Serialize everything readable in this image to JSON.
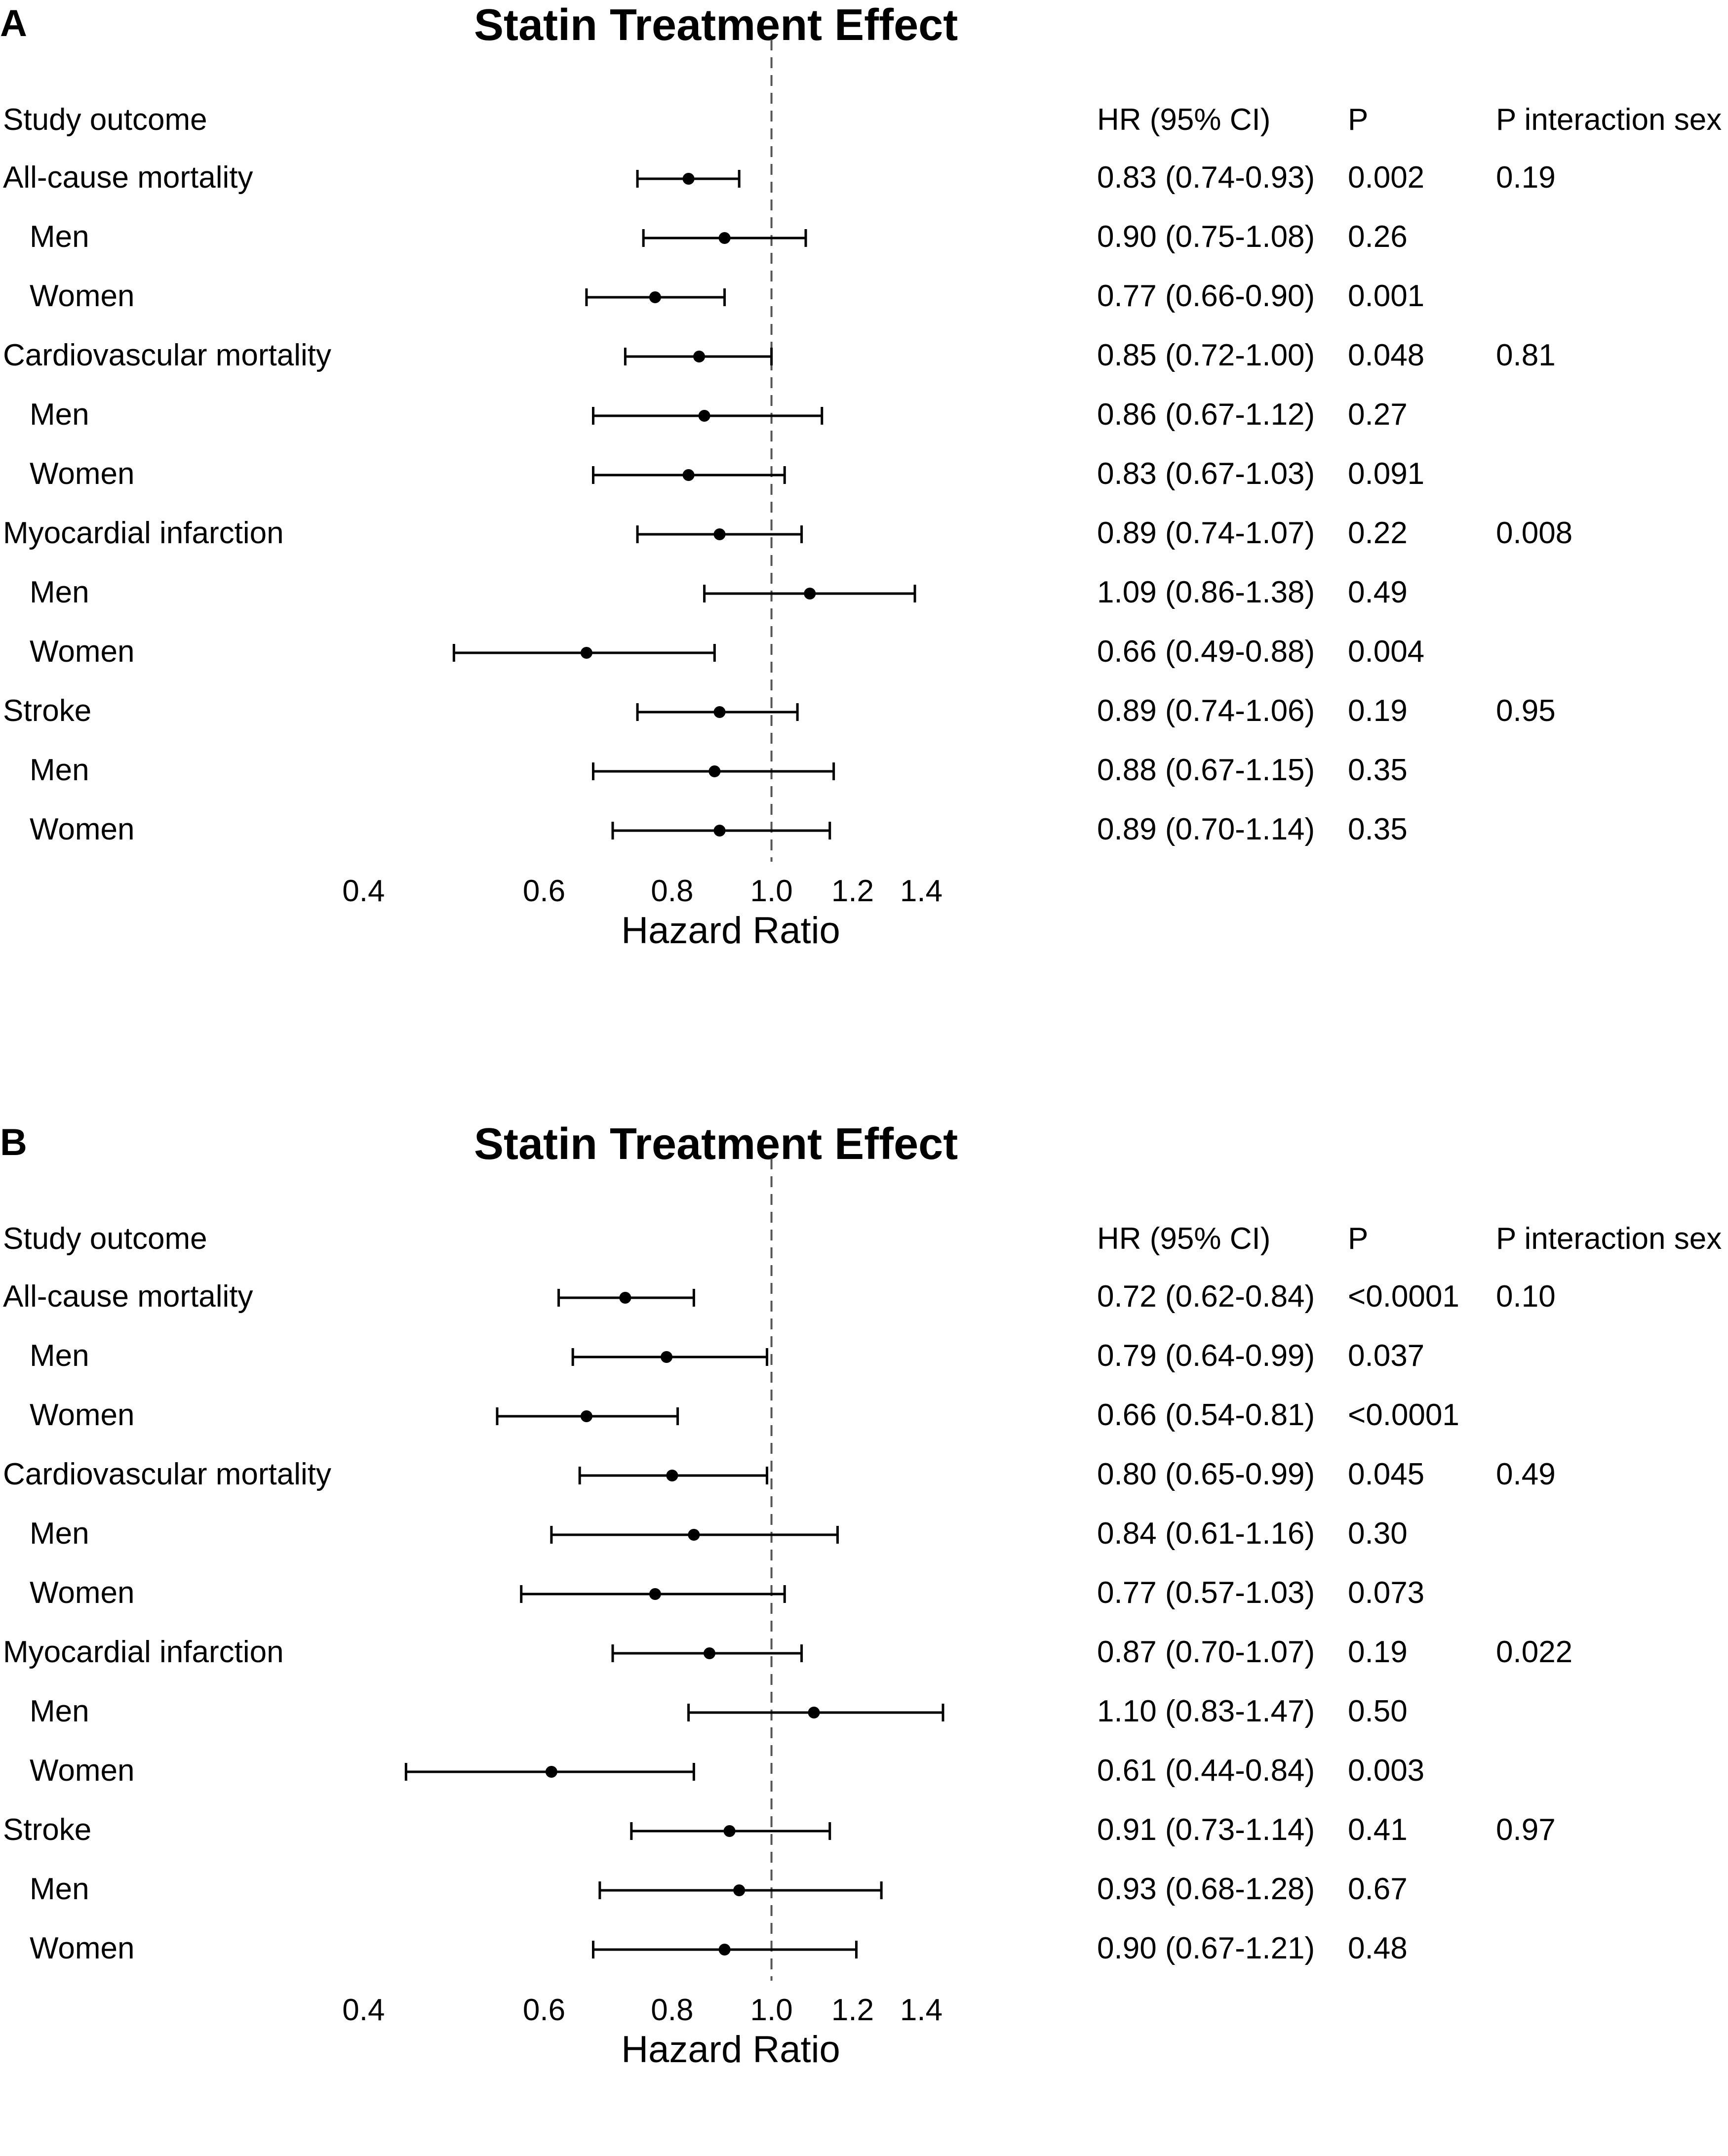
{
  "panels": [
    {
      "letter": "A",
      "title": "Statin Treatment Effect",
      "columns": {
        "outcome": "Study outcome",
        "hr": "HR (95% CI)",
        "p": "P",
        "p_interaction": "P interaction sex"
      },
      "rows": [
        {
          "label": "All-cause mortality",
          "indent": false,
          "hr_text": "0.83 (0.74-0.93)",
          "p": "0.002",
          "p_interaction": "0.19"
        },
        {
          "label": "Men",
          "indent": true,
          "hr_text": "0.90 (0.75-1.08)",
          "p": "0.26",
          "p_interaction": ""
        },
        {
          "label": "Women",
          "indent": true,
          "hr_text": "0.77 (0.66-0.90)",
          "p": "0.001",
          "p_interaction": ""
        },
        {
          "label": "Cardiovascular mortality",
          "indent": false,
          "hr_text": "0.85 (0.72-1.00)",
          "p": "0.048",
          "p_interaction": "0.81"
        },
        {
          "label": "Men",
          "indent": true,
          "hr_text": "0.86 (0.67-1.12)",
          "p": "0.27",
          "p_interaction": ""
        },
        {
          "label": "Women",
          "indent": true,
          "hr_text": "0.83 (0.67-1.03)",
          "p": "0.091",
          "p_interaction": ""
        },
        {
          "label": "Myocardial infarction",
          "indent": false,
          "hr_text": "0.89 (0.74-1.07)",
          "p": "0.22",
          "p_interaction": "0.008"
        },
        {
          "label": "Men",
          "indent": true,
          "hr_text": "1.09 (0.86-1.38)",
          "p": "0.49",
          "p_interaction": ""
        },
        {
          "label": "Women",
          "indent": true,
          "hr_text": "0.66 (0.49-0.88)",
          "p": "0.004",
          "p_interaction": ""
        },
        {
          "label": "Stroke",
          "indent": false,
          "hr_text": "0.89 (0.74-1.06)",
          "p": "0.19",
          "p_interaction": "0.95"
        },
        {
          "label": "Men",
          "indent": true,
          "hr_text": "0.88 (0.67-1.15)",
          "p": "0.35",
          "p_interaction": ""
        },
        {
          "label": "Women",
          "indent": true,
          "hr_text": "0.89 (0.70-1.14)",
          "p": "0.35",
          "p_interaction": ""
        }
      ]
    },
    {
      "letter": "B",
      "title": "Statin Treatment Effect",
      "columns": {
        "outcome": "Study outcome",
        "hr": "HR (95% CI)",
        "p": "P",
        "p_interaction": "P interaction sex"
      },
      "rows": [
        {
          "label": "All-cause mortality",
          "indent": false,
          "hr_text": "0.72 (0.62-0.84)",
          "p": "<0.0001",
          "p_interaction": "0.10"
        },
        {
          "label": "Men",
          "indent": true,
          "hr_text": "0.79 (0.64-0.99)",
          "p": "0.037",
          "p_interaction": ""
        },
        {
          "label": "Women",
          "indent": true,
          "hr_text": "0.66 (0.54-0.81)",
          "p": "<0.0001",
          "p_interaction": ""
        },
        {
          "label": "Cardiovascular mortality",
          "indent": false,
          "hr_text": "0.80 (0.65-0.99)",
          "p": "0.045",
          "p_interaction": "0.49"
        },
        {
          "label": "Men",
          "indent": true,
          "hr_text": "0.84 (0.61-1.16)",
          "p": "0.30",
          "p_interaction": ""
        },
        {
          "label": "Women",
          "indent": true,
          "hr_text": "0.77 (0.57-1.03)",
          "p": "0.073",
          "p_interaction": ""
        },
        {
          "label": "Myocardial infarction",
          "indent": false,
          "hr_text": "0.87 (0.70-1.07)",
          "p": "0.19",
          "p_interaction": "0.022"
        },
        {
          "label": "Men",
          "indent": true,
          "hr_text": "1.10 (0.83-1.47)",
          "p": "0.50",
          "p_interaction": ""
        },
        {
          "label": "Women",
          "indent": true,
          "hr_text": "0.61 (0.44-0.84)",
          "p": "0.003",
          "p_interaction": ""
        },
        {
          "label": "Stroke",
          "indent": false,
          "hr_text": "0.91 (0.73-1.14)",
          "p": "0.41",
          "p_interaction": "0.97"
        },
        {
          "label": "Men",
          "indent": true,
          "hr_text": "0.93 (0.68-1.28)",
          "p": "0.67",
          "p_interaction": ""
        },
        {
          "label": "Women",
          "indent": true,
          "hr_text": "0.90 (0.67-1.21)",
          "p": "0.48",
          "p_interaction": ""
        }
      ]
    }
  ],
  "chart_data": [
    {
      "type": "forest",
      "title": "Statin Treatment Effect",
      "xlabel": "Hazard Ratio",
      "xlim": [
        0.4,
        1.4
      ],
      "xscale": "log",
      "xticks": [
        "0.4",
        "0.6",
        "0.8",
        "1.0",
        "1.2",
        "1.4"
      ],
      "reference_line": 1.0,
      "categories": [
        "All-cause mortality",
        "Men",
        "Women",
        "Cardiovascular mortality",
        "Men",
        "Women",
        "Myocardial infarction",
        "Men",
        "Women",
        "Stroke",
        "Men",
        "Women"
      ],
      "hr": [
        0.83,
        0.9,
        0.77,
        0.85,
        0.86,
        0.83,
        0.89,
        1.09,
        0.66,
        0.89,
        0.88,
        0.89
      ],
      "lower": [
        0.74,
        0.75,
        0.66,
        0.72,
        0.67,
        0.67,
        0.74,
        0.86,
        0.49,
        0.74,
        0.67,
        0.7
      ],
      "upper": [
        0.93,
        1.08,
        0.9,
        1.0,
        1.12,
        1.03,
        1.07,
        1.38,
        0.88,
        1.06,
        1.15,
        1.14
      ]
    },
    {
      "type": "forest",
      "title": "Statin Treatment Effect",
      "xlabel": "Hazard Ratio",
      "xlim": [
        0.4,
        1.4
      ],
      "xscale": "log",
      "xticks": [
        "0.4",
        "0.6",
        "0.8",
        "1.0",
        "1.2",
        "1.4"
      ],
      "reference_line": 1.0,
      "categories": [
        "All-cause mortality",
        "Men",
        "Women",
        "Cardiovascular mortality",
        "Men",
        "Women",
        "Myocardial infarction",
        "Men",
        "Women",
        "Stroke",
        "Men",
        "Women"
      ],
      "hr": [
        0.72,
        0.79,
        0.66,
        0.8,
        0.84,
        0.77,
        0.87,
        1.1,
        0.61,
        0.91,
        0.93,
        0.9
      ],
      "lower": [
        0.62,
        0.64,
        0.54,
        0.65,
        0.61,
        0.57,
        0.7,
        0.83,
        0.44,
        0.73,
        0.68,
        0.67
      ],
      "upper": [
        0.84,
        0.99,
        0.81,
        0.99,
        1.16,
        1.03,
        1.07,
        1.47,
        0.84,
        1.14,
        1.28,
        1.21
      ]
    }
  ]
}
